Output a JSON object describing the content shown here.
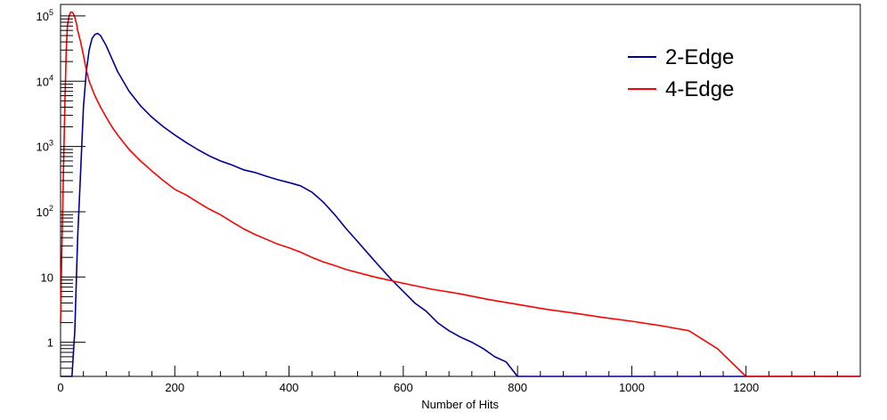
{
  "chart_data": {
    "type": "line",
    "title": "",
    "xlabel": "Number of Hits",
    "ylabel": "",
    "xlim": [
      0,
      1400
    ],
    "ylim": [
      0.3,
      150000
    ],
    "yscale": "log",
    "grid": false,
    "legend_position": "top-right",
    "x_ticks": [
      {
        "value": 0,
        "label": "0"
      },
      {
        "value": 200,
        "label": "200"
      },
      {
        "value": 400,
        "label": "400"
      },
      {
        "value": 600,
        "label": "600"
      },
      {
        "value": 800,
        "label": "800"
      },
      {
        "value": 1000,
        "label": "1000"
      },
      {
        "value": 1200,
        "label": "1200"
      }
    ],
    "y_ticks": [
      {
        "value": 1,
        "base": "1",
        "exp": ""
      },
      {
        "value": 10,
        "base": "10",
        "exp": ""
      },
      {
        "value": 100,
        "base": "10",
        "exp": "2"
      },
      {
        "value": 1000,
        "base": "10",
        "exp": "3"
      },
      {
        "value": 10000,
        "base": "10",
        "exp": "4"
      },
      {
        "value": 100000,
        "base": "10",
        "exp": "5"
      }
    ],
    "series": [
      {
        "name": "2-Edge",
        "color": "#000099",
        "x": [
          0,
          20,
          25,
          30,
          35,
          40,
          45,
          50,
          55,
          60,
          65,
          70,
          80,
          90,
          100,
          120,
          140,
          160,
          180,
          200,
          220,
          240,
          260,
          280,
          300,
          320,
          340,
          360,
          380,
          400,
          420,
          440,
          460,
          480,
          500,
          520,
          540,
          560,
          580,
          600,
          620,
          640,
          660,
          680,
          700,
          720,
          740,
          760,
          780,
          800,
          850,
          900,
          950,
          1000,
          1050,
          1100,
          1150,
          1200,
          1250,
          1300,
          1350,
          1400
        ],
        "y": [
          0.3,
          0.3,
          1.5,
          40,
          400,
          4000,
          14000,
          30000,
          45000,
          52000,
          54000,
          50000,
          35000,
          22000,
          14000,
          7000,
          4200,
          2800,
          2000,
          1500,
          1150,
          900,
          720,
          600,
          520,
          440,
          400,
          350,
          310,
          280,
          250,
          200,
          140,
          90,
          55,
          35,
          22,
          14,
          9,
          6,
          4,
          3,
          2,
          1.5,
          1.2,
          1,
          0.8,
          0.6,
          0.5,
          0.3,
          0.3,
          0.3,
          0.3,
          0.3,
          0.3,
          0.3,
          0.3,
          0.3,
          0.3,
          0.3,
          0.3,
          0.3
        ]
      },
      {
        "name": "4-Edge",
        "color": "#ff0000",
        "x": [
          0,
          2,
          5,
          8,
          10,
          12,
          15,
          18,
          20,
          22,
          25,
          28,
          30,
          35,
          40,
          45,
          50,
          60,
          70,
          80,
          90,
          100,
          120,
          140,
          160,
          180,
          200,
          220,
          240,
          260,
          280,
          300,
          320,
          340,
          360,
          380,
          400,
          420,
          440,
          460,
          480,
          500,
          550,
          600,
          650,
          700,
          750,
          800,
          850,
          900,
          950,
          1000,
          1050,
          1100,
          1150,
          1200,
          1250,
          1300,
          1350,
          1400
        ],
        "y": [
          2,
          20,
          400,
          6000,
          30000,
          70000,
          100000,
          115000,
          115000,
          110000,
          95000,
          75000,
          60000,
          40000,
          25000,
          15000,
          10000,
          6000,
          4000,
          2800,
          2000,
          1500,
          900,
          600,
          420,
          300,
          220,
          180,
          140,
          110,
          90,
          70,
          55,
          45,
          38,
          32,
          28,
          24,
          20,
          17,
          15,
          13,
          10,
          8,
          6.5,
          5.5,
          4.5,
          3.8,
          3.2,
          2.8,
          2.4,
          2.1,
          1.8,
          1.5,
          0.8,
          0.3,
          0.3,
          0.3,
          0.3,
          0.3
        ]
      }
    ]
  }
}
